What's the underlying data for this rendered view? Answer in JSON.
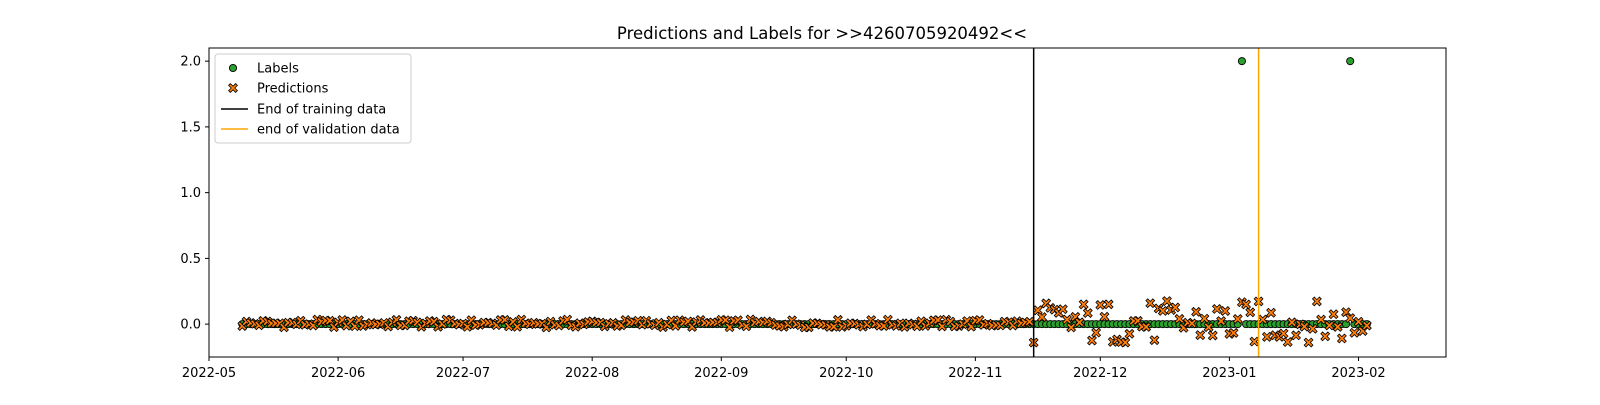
{
  "chart_data": {
    "type": "scatter",
    "title": "Predictions and Labels for >>4260705920492<<",
    "xlabel": "",
    "ylabel": "",
    "x_axis_type": "date",
    "xlim": [
      "2022-05-01",
      "2023-02-22"
    ],
    "ylim": [
      -0.25,
      2.1
    ],
    "x_ticks": [
      "2022-05",
      "2022-06",
      "2022-07",
      "2022-08",
      "2022-09",
      "2022-10",
      "2022-11",
      "2022-12",
      "2023-01",
      "2023-02"
    ],
    "y_ticks": [
      "0.0",
      "0.5",
      "1.0",
      "1.5",
      "2.0"
    ],
    "grid": false,
    "legend_position": "top-left",
    "legend": [
      "Labels",
      "Predictions",
      "End of training data",
      "end of validation data"
    ],
    "series": [
      {
        "name": "Labels",
        "marker": "circle",
        "color": "#2ca02c",
        "date_range": [
          "2022-05-09",
          "2023-02-03"
        ],
        "baseline_value": 0,
        "points": [
          {
            "x": "2023-01-04",
            "y": 2.0
          },
          {
            "x": "2023-01-30",
            "y": 2.0
          }
        ]
      },
      {
        "name": "Predictions",
        "marker": "x",
        "color": "#ff7f0e",
        "date_range": [
          "2022-05-09",
          "2023-02-03"
        ],
        "approx_range_before_training_end": [
          -0.05,
          0.06
        ],
        "approx_range_after_training_end": [
          -0.14,
          0.2
        ]
      }
    ],
    "vlines": [
      {
        "name": "End of training data",
        "x": "2022-11-15",
        "color": "#000000"
      },
      {
        "name": "end of validation data",
        "x": "2023-01-08",
        "color": "#ffa500"
      }
    ]
  }
}
